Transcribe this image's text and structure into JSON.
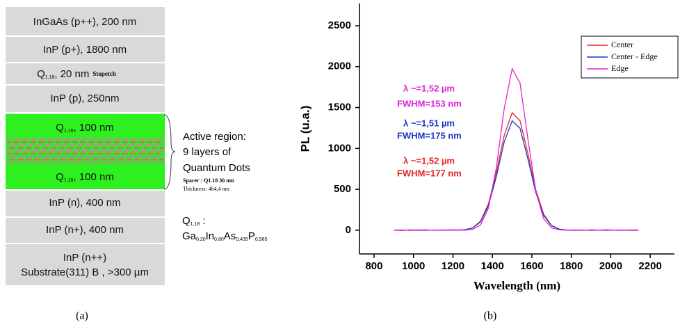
{
  "panel_a": {
    "caption": "(a)",
    "layers": [
      {
        "text": "InGaAs (p++), 200 nm"
      },
      {
        "text": "InP (p+), 1800 nm"
      },
      {
        "q": "Q",
        "sub": "1,18",
        "text": ", 20 nm",
        "note": "Stopetch"
      },
      {
        "text": "InP (p), 250nm"
      },
      {
        "text": "InP (n), 400 nm"
      },
      {
        "text": "InP (n+), 400 nm"
      },
      {
        "lines": [
          "InP (n++)",
          "Substrate(311) B , >300 µm"
        ]
      }
    ],
    "active": {
      "top": {
        "q": "Q",
        "sub": "1,18",
        "text": ", 100 nm"
      },
      "bottom": {
        "q": "Q",
        "sub": "1,18",
        "text": ", 100 nm"
      },
      "label": [
        "Active region:",
        "9 layers of",
        "Quantum Dots"
      ],
      "spacer": "Spacer : Q1.18    30 nm",
      "thickness": "Thickness: 464,4 nm"
    },
    "composition": {
      "q": "Q",
      "sub": "1,18",
      "colon": " :",
      "formula": [
        [
          "Ga",
          "0,20"
        ],
        [
          "In",
          "0,80"
        ],
        [
          "As",
          "0,435"
        ],
        [
          "P",
          "0,565"
        ]
      ]
    }
  },
  "chart_data": {
    "type": "line",
    "caption": "(b)",
    "xlabel": "Wavelength (nm)",
    "ylabel": "PL (u.a.)",
    "xlim": [
      726,
      2323
    ],
    "ylim": [
      -290,
      2772
    ],
    "xticks": [
      800,
      1000,
      1200,
      1400,
      1600,
      1800,
      2000,
      2200
    ],
    "yticks": [
      0,
      500,
      1000,
      1500,
      2000,
      2500
    ],
    "x": [
      900,
      940,
      980,
      1020,
      1060,
      1100,
      1140,
      1180,
      1220,
      1260,
      1300,
      1340,
      1380,
      1420,
      1460,
      1500,
      1540,
      1580,
      1620,
      1660,
      1700,
      1740,
      1780,
      1820,
      1860,
      1900,
      1940,
      1980,
      2020,
      2060,
      2100,
      2140
    ],
    "series": [
      {
        "name": "Center",
        "color": "#e8231f",
        "values": [
          2,
          -3,
          4,
          1,
          -2,
          3,
          0,
          5,
          2,
          6,
          29,
          111,
          323,
          706,
          1161,
          1437,
          1338,
          938,
          494,
          196,
          58,
          13,
          2,
          3,
          -2,
          4,
          1,
          -1,
          3,
          2,
          -2,
          1
        ]
      },
      {
        "name": "Center - Edge",
        "color": "#1a35c8",
        "values": [
          1,
          3,
          -2,
          2,
          4,
          -1,
          2,
          3,
          1,
          6,
          27,
          103,
          301,
          657,
          1081,
          1338,
          1246,
          873,
          460,
          182,
          54,
          12,
          2,
          1,
          3,
          -2,
          2,
          4,
          0,
          -1,
          3,
          2
        ]
      },
      {
        "name": "Edge",
        "color": "#e020d8",
        "values": [
          0,
          2,
          1,
          -2,
          3,
          1,
          -1,
          2,
          4,
          1,
          11,
          65,
          271,
          767,
          1488,
          1976,
          1800,
          1120,
          478,
          140,
          28,
          4,
          1,
          -2,
          2,
          0,
          3,
          -1,
          1,
          2,
          0,
          -2
        ]
      }
    ],
    "legend": "upper right",
    "annotations": [
      {
        "text": "λ ~=1,52 µm",
        "color": "#e020d8"
      },
      {
        "text": "FWHM=153 nm",
        "color": "#e020d8"
      },
      {
        "text": "λ ~=1,51 µm",
        "color": "#1a35c8"
      },
      {
        "text": "FWHM=175 nm",
        "color": "#1a35c8"
      },
      {
        "text": "λ ~=1,52 µm",
        "color": "#e8231f"
      },
      {
        "text": "FWHM=177 nm",
        "color": "#e8231f"
      }
    ]
  }
}
